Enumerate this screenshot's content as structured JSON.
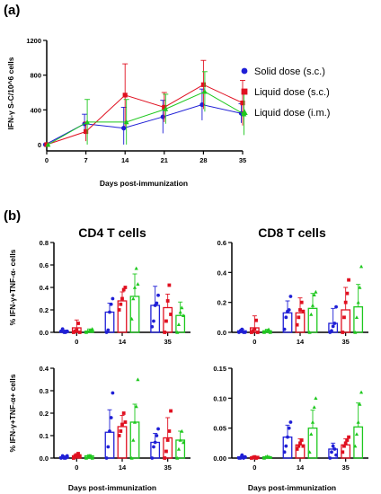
{
  "panel_labels": [
    "(a)",
    "(b)"
  ],
  "legend": [
    "Solid dose (s.c.)",
    "Liquid dose (s.c.)",
    "Liquid dose (i.m.)"
  ],
  "colors": {
    "solid": "#1f1fd6",
    "liquid_sc": "#e01020",
    "liquid_im": "#1ec81e"
  },
  "chart_data": [
    {
      "id": "a",
      "type": "line",
      "ylabel": "IFN-γ S-C/10^6 cells",
      "xlabel": "Days post-immunization",
      "x": [
        0,
        7,
        14,
        21,
        28,
        35
      ],
      "xlim": [
        0,
        35
      ],
      "ylim": [
        0,
        1200
      ],
      "yticks": [
        0,
        400,
        800,
        1200
      ],
      "series": [
        {
          "name": "Solid dose (s.c.)",
          "marker": "circle",
          "values": [
            0,
            240,
            190,
            320,
            460,
            360
          ],
          "err": [
            0,
            110,
            240,
            190,
            180,
            110
          ]
        },
        {
          "name": "Liquid dose (s.c.)",
          "marker": "square",
          "values": [
            0,
            150,
            570,
            430,
            690,
            480
          ],
          "err": [
            0,
            110,
            360,
            170,
            280,
            260
          ]
        },
        {
          "name": "Liquid dose (i.m.)",
          "marker": "triangle",
          "values": [
            0,
            260,
            260,
            410,
            610,
            350
          ],
          "err": [
            0,
            260,
            260,
            170,
            230,
            240
          ]
        }
      ]
    },
    {
      "id": "b1",
      "title": "CD4 T cells",
      "type": "bar",
      "ylabel": "% IFN-γ+TNF-α- cells",
      "xlabel": "",
      "categories": [
        "0",
        "14",
        "35"
      ],
      "ylim": [
        0,
        0.8
      ],
      "yticks": [
        "0.0",
        "0.2",
        "0.4",
        "0.6",
        "0.8"
      ],
      "series": [
        {
          "name": "Solid dose (s.c.)",
          "values": [
            0.01,
            0.18,
            0.24
          ],
          "err": [
            0.01,
            0.08,
            0.17
          ],
          "points": [
            [
              0.01,
              0.03,
              0.0,
              0.0,
              0.01
            ],
            [
              0.0,
              0.02,
              0.18,
              0.25,
              0.3
            ],
            [
              0.05,
              0.1,
              0.24,
              0.26,
              0.33
            ]
          ]
        },
        {
          "name": "Liquid dose (s.c.)",
          "values": [
            0.04,
            0.28,
            0.22
          ],
          "err": [
            0.07,
            0.08,
            0.12
          ],
          "points": [
            [
              0.0,
              0.01,
              0.02,
              0.08,
              0.0
            ],
            [
              0.2,
              0.25,
              0.3,
              0.38,
              0.4
            ],
            [
              0.0,
              0.1,
              0.28,
              0.42,
              0.16
            ]
          ]
        },
        {
          "name": "Liquid dose (i.m.)",
          "values": [
            0.01,
            0.32,
            0.15
          ],
          "err": [
            0.02,
            0.2,
            0.12
          ],
          "points": [
            [
              0.0,
              0.01,
              0.01,
              0.02,
              0.03
            ],
            [
              0.12,
              0.3,
              0.4,
              0.57,
              0.43
            ],
            [
              0.0,
              0.07,
              0.18,
              0.22,
              0.15
            ]
          ]
        }
      ]
    },
    {
      "id": "b2",
      "title": "CD8 T cells",
      "type": "bar",
      "ylabel": "",
      "xlabel": "",
      "categories": [
        "0",
        "14",
        "35"
      ],
      "ylim": [
        0,
        0.6
      ],
      "yticks": [
        "0.0",
        "0.2",
        "0.4",
        "0.6"
      ],
      "series": [
        {
          "name": "Solid dose (s.c.)",
          "values": [
            0.01,
            0.13,
            0.06
          ],
          "err": [
            0.01,
            0.08,
            0.1
          ],
          "points": [
            [
              0.0,
              0.01,
              0.02,
              0.0,
              0.0
            ],
            [
              0.02,
              0.1,
              0.14,
              0.15,
              0.24
            ],
            [
              0.0,
              0.01,
              0.04,
              0.06,
              0.17
            ]
          ]
        },
        {
          "name": "Liquid dose (s.c.)",
          "values": [
            0.03,
            0.13,
            0.15
          ],
          "err": [
            0.08,
            0.1,
            0.15
          ],
          "points": [
            [
              0.0,
              0.01,
              0.02,
              0.08,
              0.0
            ],
            [
              0.05,
              0.1,
              0.15,
              0.2,
              0.14
            ],
            [
              0.0,
              0.1,
              0.2,
              0.26,
              0.35
            ]
          ]
        },
        {
          "name": "Liquid dose (i.m.)",
          "values": [
            0.01,
            0.16,
            0.17
          ],
          "err": [
            0.01,
            0.1,
            0.15
          ],
          "points": [
            [
              0.0,
              0.01,
              0.01,
              0.02,
              0.0
            ],
            [
              0.0,
              0.12,
              0.18,
              0.25,
              0.27
            ],
            [
              0.0,
              0.1,
              0.2,
              0.3,
              0.44
            ]
          ]
        }
      ]
    },
    {
      "id": "b3",
      "title": "",
      "type": "bar",
      "ylabel": "% IFN-γ+TNF-α+ cells",
      "xlabel": "Days post-immunization",
      "categories": [
        "0",
        "14",
        "35"
      ],
      "ylim": [
        0,
        0.4
      ],
      "yticks": [
        "0.0",
        "0.1",
        "0.2",
        "0.3",
        "0.4"
      ],
      "series": [
        {
          "name": "Solid dose (s.c.)",
          "values": [
            0.005,
            0.115,
            0.07
          ],
          "err": [
            0.005,
            0.1,
            0.04
          ],
          "points": [
            [
              0.0,
              0.01,
              0.0,
              0.0,
              0.01
            ],
            [
              0.0,
              0.05,
              0.12,
              0.18,
              0.29
            ],
            [
              0.0,
              0.05,
              0.07,
              0.1,
              0.13
            ]
          ]
        },
        {
          "name": "Liquid dose (s.c.)",
          "values": [
            0.01,
            0.14,
            0.09
          ],
          "err": [
            0.01,
            0.05,
            0.09
          ],
          "points": [
            [
              0.0,
              0.01,
              0.01,
              0.02,
              0.01
            ],
            [
              0.1,
              0.12,
              0.15,
              0.2,
              0.16
            ],
            [
              0.0,
              0.03,
              0.08,
              0.12,
              0.21
            ]
          ]
        },
        {
          "name": "Liquid dose (i.m.)",
          "values": [
            0.01,
            0.16,
            0.08
          ],
          "err": [
            0.005,
            0.08,
            0.04
          ],
          "points": [
            [
              0.0,
              0.005,
              0.01,
              0.01,
              0.0
            ],
            [
              0.0,
              0.08,
              0.16,
              0.23,
              0.35
            ],
            [
              0.0,
              0.04,
              0.08,
              0.12,
              0.07
            ]
          ]
        }
      ]
    },
    {
      "id": "b4",
      "title": "",
      "type": "bar",
      "ylabel": "",
      "xlabel": "Days post-immunization",
      "categories": [
        "0",
        "14",
        "35"
      ],
      "ylim": [
        0,
        0.15
      ],
      "yticks": [
        "0.00",
        "0.05",
        "0.10",
        "0.15"
      ],
      "series": [
        {
          "name": "Solid dose (s.c.)",
          "values": [
            0.002,
            0.035,
            0.015
          ],
          "err": [
            0.002,
            0.02,
            0.01
          ],
          "points": [
            [
              0.0,
              0.0,
              0.005,
              0.0,
              0.002
            ],
            [
              0.01,
              0.02,
              0.035,
              0.05,
              0.06
            ],
            [
              0.0,
              0.01,
              0.02,
              0.015,
              0.005
            ]
          ]
        },
        {
          "name": "Liquid dose (s.c.)",
          "values": [
            0.001,
            0.022,
            0.022
          ],
          "err": [
            0.002,
            0.01,
            0.01
          ],
          "points": [
            [
              0.0,
              0.001,
              0.002,
              0.0,
              0.001
            ],
            [
              0.015,
              0.02,
              0.025,
              0.03,
              0.02
            ],
            [
              0.01,
              0.02,
              0.025,
              0.03,
              0.035
            ]
          ]
        },
        {
          "name": "Liquid dose (i.m.)",
          "values": [
            0.002,
            0.05,
            0.052
          ],
          "err": [
            0.001,
            0.03,
            0.04
          ],
          "points": [
            [
              0.0,
              0.002,
              0.003,
              0.002,
              0.001
            ],
            [
              0.01,
              0.04,
              0.06,
              0.085,
              0.1
            ],
            [
              0.02,
              0.04,
              0.06,
              0.09,
              0.11
            ]
          ]
        }
      ]
    }
  ]
}
